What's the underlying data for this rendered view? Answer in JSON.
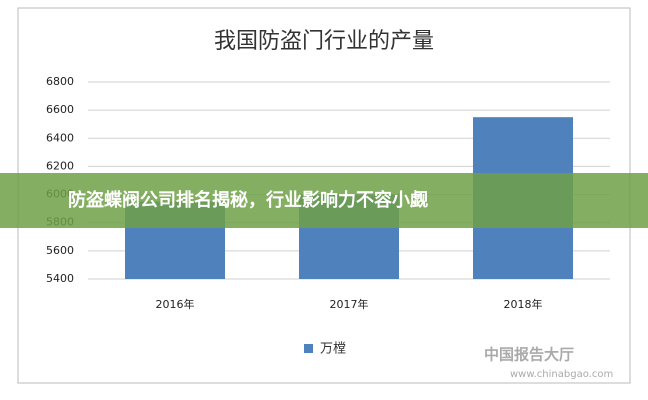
{
  "chart_data": {
    "type": "bar",
    "title": "我国防盗门行业的产量",
    "categories": [
      "2016年",
      "2017年",
      "2018年"
    ],
    "series": [
      {
        "name": "万樘",
        "color": "#4f81bd",
        "values": [
          5950,
          6000,
          6550
        ]
      }
    ],
    "ylim": [
      5400,
      6800
    ],
    "yticks": [
      5400,
      5600,
      5800,
      6000,
      6200,
      6400,
      6600,
      6800
    ],
    "grid": true
  },
  "banner": "防盗蝶阀公司排名揭秘，行业影响力不容小觑",
  "watermark": {
    "name": "中国报告大厅",
    "url": "www.chinabgao.com"
  }
}
